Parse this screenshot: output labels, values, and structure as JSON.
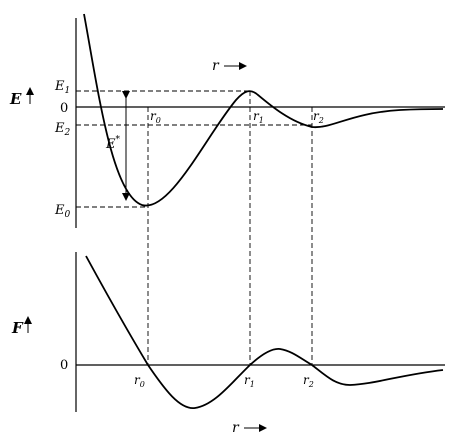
{
  "energy_panel": {
    "y_symbol": "E",
    "x_symbol": "r",
    "level_labels": {
      "E1": {
        "main": "E",
        "sub": "1"
      },
      "zero": "0",
      "E2": {
        "main": "E",
        "sub": "2"
      },
      "Estar": {
        "main": "E",
        "sup": "*"
      },
      "E0": {
        "main": "E",
        "sub": "0"
      }
    },
    "r_labels": {
      "r0": {
        "main": "r",
        "sub": "0"
      },
      "r1": {
        "main": "r",
        "sub": "1"
      },
      "r2": {
        "main": "r",
        "sub": "2"
      }
    }
  },
  "force_panel": {
    "y_symbol": "F",
    "x_symbol": "r",
    "zero": "0",
    "r_labels": {
      "r0": {
        "main": "r",
        "sub": "0"
      },
      "r1": {
        "main": "r",
        "sub": "1"
      },
      "r2": {
        "main": "r",
        "sub": "2"
      }
    }
  }
}
